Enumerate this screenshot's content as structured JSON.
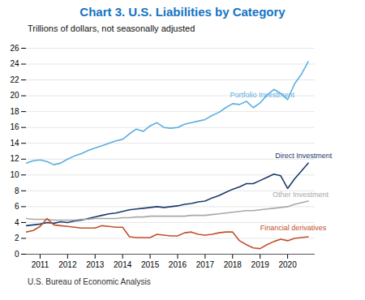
{
  "chart_data": {
    "type": "line",
    "title": "Chart 3. U.S. Liabilities by Category",
    "title_color": "#1474C4",
    "subtitle": "Trillions of dollars, not seasonally adjusted",
    "caption": "U.S. Bureau of Economic Analysis",
    "x": [
      2010.5,
      2010.75,
      2011.0,
      2011.25,
      2011.5,
      2011.75,
      2012.0,
      2012.25,
      2012.5,
      2012.75,
      2013.0,
      2013.25,
      2013.5,
      2013.75,
      2014.0,
      2014.25,
      2014.5,
      2014.75,
      2015.0,
      2015.25,
      2015.5,
      2015.75,
      2016.0,
      2016.25,
      2016.5,
      2016.75,
      2017.0,
      2017.25,
      2017.5,
      2017.75,
      2018.0,
      2018.25,
      2018.5,
      2018.75,
      2019.0,
      2019.25,
      2019.5,
      2019.75,
      2020.0,
      2020.25,
      2020.5,
      2020.75
    ],
    "xlim": [
      2010.5,
      2021.0
    ],
    "xticks": [
      2011,
      2012,
      2013,
      2014,
      2015,
      2016,
      2017,
      2018,
      2019,
      2020
    ],
    "ylim": [
      0,
      26
    ],
    "yticks": [
      0,
      2,
      4,
      6,
      8,
      10,
      12,
      14,
      16,
      18,
      20,
      22,
      24,
      26
    ],
    "grid": true,
    "series": [
      {
        "name": "Portfolio Investment",
        "color": "#5BAEE0",
        "values": [
          11.5,
          11.8,
          11.9,
          11.7,
          11.3,
          11.5,
          12.0,
          12.4,
          12.7,
          13.1,
          13.4,
          13.7,
          14.0,
          14.3,
          14.5,
          15.2,
          15.8,
          15.5,
          16.2,
          16.6,
          16.0,
          15.9,
          16.0,
          16.4,
          16.6,
          16.8,
          17.0,
          17.5,
          17.9,
          18.5,
          19.0,
          18.9,
          19.3,
          18.5,
          19.1,
          20.1,
          20.8,
          20.3,
          19.5,
          21.5,
          22.7,
          24.3
        ]
      },
      {
        "name": "Direct Investment",
        "color": "#1B3A6B",
        "values": [
          3.6,
          3.7,
          3.8,
          4.0,
          3.9,
          4.1,
          4.0,
          4.2,
          4.3,
          4.5,
          4.7,
          4.9,
          5.1,
          5.2,
          5.4,
          5.6,
          5.7,
          5.8,
          5.9,
          6.0,
          5.9,
          6.0,
          6.1,
          6.3,
          6.4,
          6.6,
          6.7,
          7.1,
          7.4,
          7.8,
          8.2,
          8.5,
          8.9,
          8.9,
          9.3,
          9.7,
          10.1,
          9.9,
          8.3,
          9.5,
          10.5,
          11.5
        ]
      },
      {
        "name": "Other Investment",
        "color": "#A8A8A8",
        "values": [
          4.5,
          4.4,
          4.4,
          4.4,
          4.3,
          4.3,
          4.3,
          4.3,
          4.4,
          4.4,
          4.5,
          4.5,
          4.5,
          4.5,
          4.6,
          4.6,
          4.7,
          4.7,
          4.8,
          4.8,
          4.8,
          4.8,
          4.8,
          4.8,
          4.9,
          4.9,
          4.9,
          5.0,
          5.1,
          5.2,
          5.3,
          5.4,
          5.5,
          5.5,
          5.6,
          5.7,
          5.8,
          5.9,
          6.0,
          6.3,
          6.5,
          6.7
        ]
      },
      {
        "name": "Financial derivatives",
        "color": "#C0522A",
        "values": [
          2.8,
          3.0,
          3.5,
          4.5,
          3.7,
          3.6,
          3.5,
          3.4,
          3.3,
          3.3,
          3.3,
          3.6,
          3.5,
          3.4,
          3.4,
          2.2,
          2.1,
          2.1,
          2.1,
          2.5,
          2.4,
          2.3,
          2.3,
          2.7,
          2.8,
          2.5,
          2.4,
          2.5,
          2.7,
          2.8,
          2.8,
          1.7,
          1.2,
          0.8,
          0.7,
          1.2,
          1.6,
          1.9,
          1.7,
          2.0,
          2.1,
          2.2
        ]
      }
    ],
    "annotations": [
      {
        "text": "Portfolio Investment",
        "x": 2017.9,
        "y": 19.8,
        "color": "#5BAEE0"
      },
      {
        "text": "Direct Investment",
        "x": 2019.55,
        "y": 12.1,
        "color": "#1B3A6B"
      },
      {
        "text": "Other Investment",
        "x": 2019.45,
        "y": 7.2,
        "color": "#A8A8A8"
      },
      {
        "text": "Financial derivatives",
        "x": 2019.0,
        "y": 3.05,
        "color": "#C0522A"
      }
    ]
  }
}
